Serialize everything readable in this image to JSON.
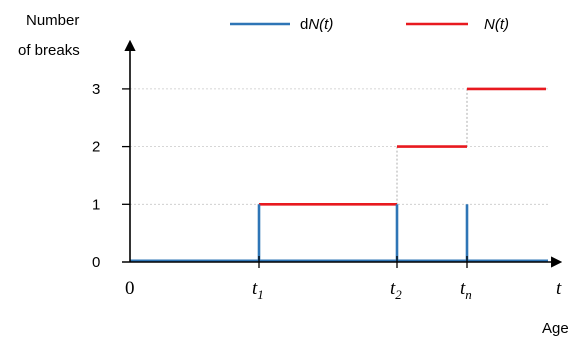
{
  "chart_data": {
    "type": "line",
    "ylabel_line1": "Number",
    "ylabel_line2": "of breaks",
    "xlabel": "Age",
    "ylim": [
      0,
      3
    ],
    "yticks": [
      "0",
      "1",
      "2",
      "3"
    ],
    "xticks": [
      {
        "main": "0",
        "sub": "",
        "italic": false
      },
      {
        "main": "t",
        "sub": "1",
        "italic": true
      },
      {
        "main": "t",
        "sub": "2",
        "italic": true
      },
      {
        "main": "t",
        "sub": "n",
        "italic": true
      },
      {
        "main": "t",
        "sub": "",
        "italic": true
      }
    ],
    "grid": true,
    "legend_position": "top",
    "series": [
      {
        "name_prefix": "d",
        "name_italic": "N(t)",
        "color": "#2E75B6",
        "kind": "impulse",
        "impulses_at": [
          "t1",
          "t2",
          "tn"
        ],
        "height": 1
      },
      {
        "name_prefix": "",
        "name_italic": "N(t)",
        "color": "#E8191F",
        "kind": "step",
        "steps": [
          {
            "from": "t1",
            "to": "t2",
            "value": 1
          },
          {
            "from": "t2",
            "to": "tn",
            "value": 2
          },
          {
            "from": "tn",
            "to": "end",
            "value": 3
          }
        ]
      }
    ]
  }
}
